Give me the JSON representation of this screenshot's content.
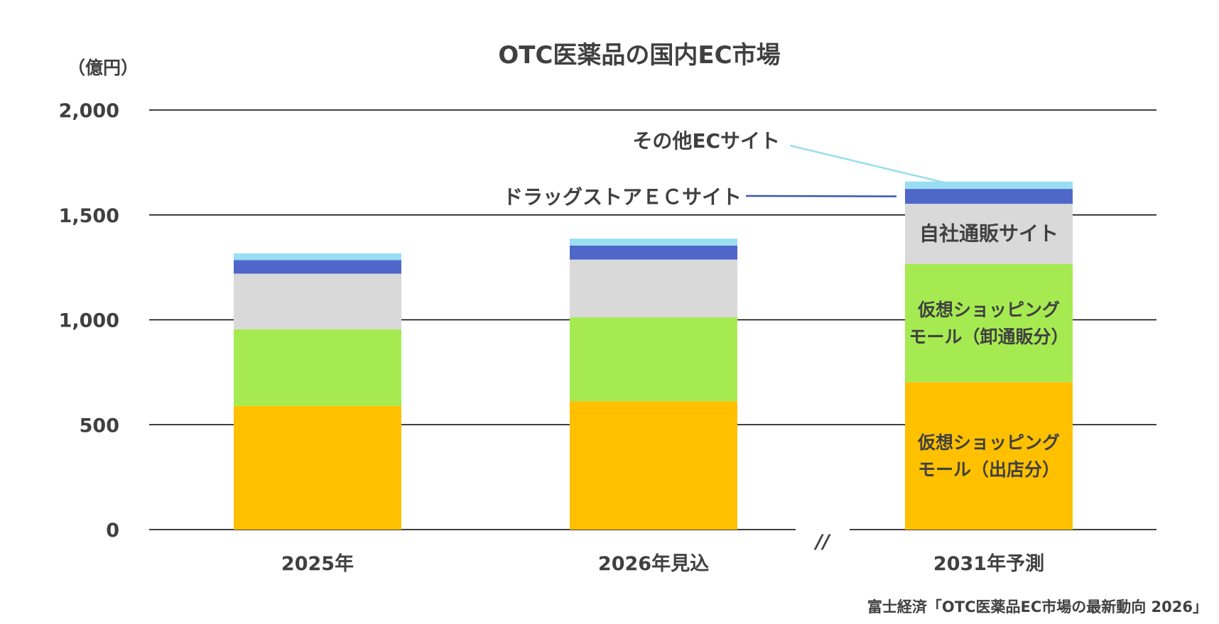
{
  "chart_data": {
    "type": "bar",
    "stacked": true,
    "title": "OTC医薬品の国内EC市場",
    "unit_label": "（億円）",
    "categories": [
      "2025年",
      "2026年見込",
      "2031年予測"
    ],
    "yticks": [
      "0",
      "500",
      "1,000",
      "1,500",
      "2,000"
    ],
    "ylim": [
      0,
      2000
    ],
    "grid": true,
    "axis_break": "//",
    "series": [
      {
        "name": "仮想ショッピングモール（出店分）",
        "label_lines": [
          "仮想ショッピング",
          "モール（出店分）"
        ],
        "color": "#FFC000",
        "values": [
          590,
          612,
          703
        ]
      },
      {
        "name": "仮想ショッピングモール（卸通販分）",
        "label_lines": [
          "仮想ショッピング",
          "モール（卸通販分）"
        ],
        "color": "#A6EA52",
        "values": [
          365,
          400,
          563
        ]
      },
      {
        "name": "自社通販サイト",
        "label_lines": [
          "自社通販サイト"
        ],
        "color": "#D9D9D9",
        "values": [
          265,
          275,
          287
        ]
      },
      {
        "name": "ドラッグストアＥＣサイト",
        "label_lines": [],
        "color": "#4F67C9",
        "values": [
          65,
          67,
          71
        ]
      },
      {
        "name": "その他ECサイト",
        "label_lines": [],
        "color": "#99DEF2",
        "values": [
          32,
          33,
          35
        ]
      }
    ],
    "callouts": [
      {
        "text": "その他ECサイト",
        "series": "その他ECサイト",
        "line_color": "#99DEF2"
      },
      {
        "text": "ドラッグストアＥＣサイト",
        "series": "ドラッグストアＥＣサイト",
        "line_color": "#3D55B8"
      }
    ],
    "source": "富士経済「OTC医薬品EC市場の最新動向 2026」"
  }
}
